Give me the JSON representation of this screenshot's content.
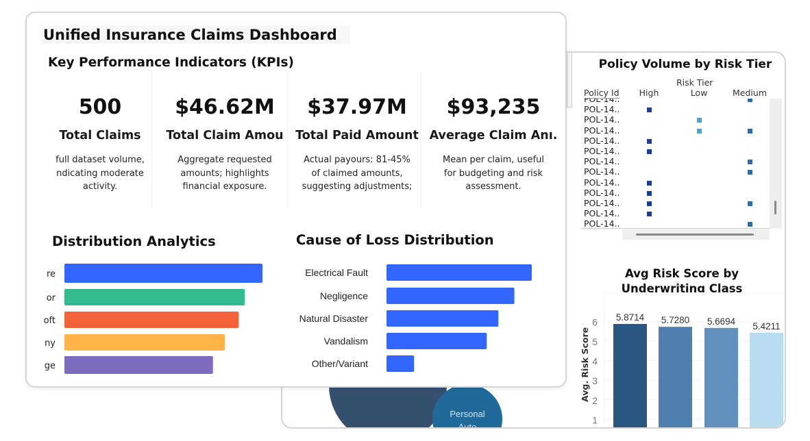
{
  "dashboard": {
    "title": "Unified Insurance Claims Dashboard",
    "kpi_header": "Key Performance Indicators (KPIs)"
  },
  "kpis": [
    {
      "value": "500",
      "label": "Total Claims",
      "desc": "full dataset volume,\nndicating moderate\nactivity."
    },
    {
      "value": "$46.62M",
      "label": "Total Claim Amou",
      "desc": "Aggregate requested\namounts; highlights\nfinancial exposure."
    },
    {
      "value": "$37.97M",
      "label": "Total Paid Amount",
      "desc": "Actual payours: 81-45%\nof claimed amounts,\nsuggesting adjustments;"
    },
    {
      "value": "$93,235",
      "label": "Average Claim Anı.",
      "desc": "Mean per claim, useful\nfor budgeting and risk\nassessment."
    }
  ],
  "chart_data": [
    {
      "type": "bar",
      "title": "Distribution Analytics",
      "orientation": "horizontal",
      "categories": [
        "re",
        "or",
        "oft",
        "ny",
        "ge"
      ],
      "values": [
        100,
        91,
        88,
        81,
        75
      ],
      "colors": [
        "#3366ff",
        "#33bb8f",
        "#f5623a",
        "#ffb347",
        "#7e6bbf"
      ]
    },
    {
      "type": "bar",
      "title": "Cause of Loss Distribution",
      "orientation": "horizontal",
      "categories": [
        "Electrical Fault",
        "Negligence",
        "Natural Disaster",
        "Vandalism",
        "Other/Variant"
      ],
      "values": [
        100,
        88,
        77,
        69,
        19
      ],
      "colors": [
        "#3366ff"
      ]
    },
    {
      "type": "heatmap",
      "title": "Policy Volume by Risk Tier",
      "column_group": "Risk Tier",
      "row_header": "Policy Id",
      "columns": [
        "High",
        "Low",
        "Medium"
      ],
      "rows": [
        "POL-14..",
        "POL-14..",
        "POL-14..",
        "POL-14..",
        "POL-14..",
        "POL-14..",
        "POL-14..",
        "POL-14..",
        "POL-14..",
        "POL-14..",
        "POL-14..",
        "POL-14..",
        "POL-14.."
      ],
      "marks": [
        [
          0,
          0,
          1
        ],
        [
          1,
          0,
          0
        ],
        [
          0,
          1,
          0
        ],
        [
          0,
          1,
          1
        ],
        [
          1,
          0,
          0
        ],
        [
          1,
          0,
          0
        ],
        [
          0,
          0,
          1
        ],
        [
          0,
          0,
          1
        ],
        [
          1,
          0,
          0
        ],
        [
          1,
          0,
          0
        ],
        [
          1,
          0,
          1
        ],
        [
          1,
          0,
          0
        ],
        [
          0,
          0,
          1
        ]
      ],
      "colors": {
        "High": "#1a3a9c",
        "Low": "#4aa3d0",
        "Medium": "#2a6fa8"
      }
    },
    {
      "type": "bar",
      "title": "Avg Risk Score by Underwriting Class",
      "ylabel": "Avg. Risk Score",
      "yticks": [
        1,
        2,
        3,
        4,
        5,
        6
      ],
      "values": [
        5.8714,
        5.728,
        5.6694,
        5.4211
      ],
      "labels": [
        "5.8714",
        "5.7280",
        "5.6694",
        "5.4211"
      ],
      "colors": [
        "#2b5783",
        "#4f7fae",
        "#6190bd",
        "#b8dcf0"
      ]
    }
  ],
  "bubbles": {
    "label": "Personal Auto",
    "colors": [
      "#34506e",
      "#1f6a9a"
    ]
  }
}
